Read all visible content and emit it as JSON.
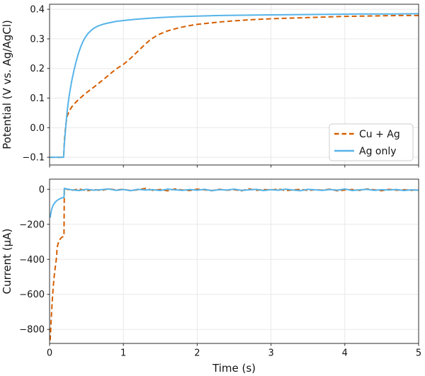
{
  "figure": {
    "background": "#ffffff"
  },
  "palette": {
    "cu_ag": "#D55E00",
    "ag_only": "#56B4E9",
    "grid": "#e8e8e8",
    "spine": "#2e2e2e",
    "text": "#141414",
    "legend_border": "#cccccc",
    "legend_bg": "#ffffff"
  },
  "chart_data": [
    {
      "type": "line",
      "title": "",
      "xlabel": "",
      "ylabel": "Potential (V vs. Ag/AgCl)",
      "xlim": [
        0,
        5
      ],
      "ylim": [
        -0.126,
        0.417
      ],
      "xticks": [
        0,
        1,
        2,
        3,
        4,
        5
      ],
      "xtick_labels": [
        "0",
        "1",
        "2",
        "3",
        "4",
        "5"
      ],
      "show_xtick_labels": false,
      "yticks": [
        -0.1,
        0.0,
        0.1,
        0.2,
        0.3,
        0.4
      ],
      "ytick_labels": [
        "−0.1",
        "0.0",
        "0.1",
        "0.2",
        "0.3",
        "0.4"
      ],
      "grid": true,
      "legend": {
        "position": "lower right",
        "entries": [
          {
            "label": "Cu + Ag",
            "series": "cu_ag",
            "line": "dashed"
          },
          {
            "label": "Ag only",
            "series": "ag_only",
            "line": "solid"
          }
        ]
      },
      "series": [
        {
          "id": "cu_ag",
          "name": "Cu + Ag",
          "style": "dashed",
          "x": [
            0,
            0.08,
            0.15,
            0.19,
            0.2,
            0.22,
            0.24,
            0.27,
            0.3,
            0.34,
            0.38,
            0.42,
            0.46,
            0.5,
            0.55,
            0.6,
            0.65,
            0.7,
            0.75,
            0.8,
            0.85,
            0.9,
            0.95,
            1.0,
            1.05,
            1.1,
            1.15,
            1.2,
            1.25,
            1.3,
            1.35,
            1.4,
            1.45,
            1.5,
            1.6,
            1.7,
            1.8,
            1.9,
            2.0,
            2.15,
            2.3,
            2.5,
            2.75,
            3.0,
            3.25,
            3.5,
            3.75,
            4.0,
            4.25,
            4.5,
            4.75,
            5.0
          ],
          "y": [
            -0.1,
            -0.1,
            -0.1,
            -0.1,
            -0.045,
            0.012,
            0.04,
            0.058,
            0.07,
            0.082,
            0.092,
            0.101,
            0.11,
            0.118,
            0.128,
            0.137,
            0.147,
            0.157,
            0.167,
            0.177,
            0.188,
            0.198,
            0.206,
            0.214,
            0.224,
            0.235,
            0.247,
            0.259,
            0.271,
            0.283,
            0.294,
            0.303,
            0.311,
            0.317,
            0.327,
            0.334,
            0.34,
            0.345,
            0.349,
            0.353,
            0.357,
            0.361,
            0.365,
            0.368,
            0.37,
            0.372,
            0.374,
            0.376,
            0.377,
            0.378,
            0.379,
            0.379
          ]
        },
        {
          "id": "ag_only",
          "name": "Ag only",
          "style": "solid",
          "x": [
            0,
            0.08,
            0.15,
            0.19,
            0.2,
            0.215,
            0.23,
            0.25,
            0.27,
            0.3,
            0.33,
            0.36,
            0.39,
            0.42,
            0.45,
            0.48,
            0.52,
            0.56,
            0.6,
            0.66,
            0.73,
            0.8,
            0.9,
            1.0,
            1.15,
            1.3,
            1.5,
            1.75,
            2.0,
            2.3,
            2.6,
            3.0,
            3.4,
            3.8,
            4.2,
            4.6,
            5.0
          ],
          "y": [
            -0.1,
            -0.1,
            -0.1,
            -0.1,
            -0.055,
            -0.01,
            0.035,
            0.08,
            0.115,
            0.158,
            0.193,
            0.224,
            0.25,
            0.272,
            0.29,
            0.304,
            0.318,
            0.328,
            0.336,
            0.344,
            0.35,
            0.354,
            0.359,
            0.362,
            0.366,
            0.369,
            0.372,
            0.375,
            0.377,
            0.379,
            0.38,
            0.381,
            0.382,
            0.383,
            0.384,
            0.384,
            0.385
          ]
        }
      ]
    },
    {
      "type": "line",
      "title": "",
      "xlabel": "Time (s)",
      "ylabel": "Current (μA)",
      "xlim": [
        0,
        5
      ],
      "ylim": [
        -880,
        58
      ],
      "xticks": [
        0,
        1,
        2,
        3,
        4,
        5
      ],
      "xtick_labels": [
        "0",
        "1",
        "2",
        "3",
        "4",
        "5"
      ],
      "show_xtick_labels": true,
      "yticks": [
        -800,
        -600,
        -400,
        -200,
        0
      ],
      "ytick_labels": [
        "−800",
        "−600",
        "−400",
        "−200",
        "0"
      ],
      "grid": true,
      "legend": null,
      "series": [
        {
          "id": "cu_ag",
          "name": "Cu + Ag",
          "style": "dashed",
          "x": [
            0.008,
            0.012,
            0.018,
            0.025,
            0.033,
            0.042,
            0.052,
            0.063,
            0.075,
            0.088,
            0.095,
            0.1,
            0.105,
            0.112,
            0.125,
            0.14,
            0.155,
            0.17,
            0.185,
            0.195,
            0.2,
            0.21,
            0.3,
            0.4,
            0.5,
            0.6,
            0.7,
            0.8,
            0.9,
            1.0,
            1.1,
            1.2,
            1.3,
            1.4,
            1.5,
            1.6,
            1.7,
            1.8,
            1.9,
            2.0,
            2.1,
            2.2,
            2.3,
            2.4,
            2.5,
            2.6,
            2.7,
            2.8,
            2.9,
            3.0,
            3.1,
            3.2,
            3.3,
            3.4,
            3.5,
            3.6,
            3.7,
            3.8,
            3.9,
            4.0,
            4.1,
            4.2,
            4.3,
            4.4,
            4.5,
            4.6,
            4.7,
            4.8,
            4.9,
            5.0
          ],
          "y": [
            -862,
            -828,
            -775,
            -718,
            -660,
            -600,
            -545,
            -495,
            -452,
            -410,
            -385,
            -345,
            -330,
            -315,
            -298,
            -286,
            -278,
            -273,
            -270,
            -268,
            8,
            3,
            -6,
            2,
            -9,
            -1,
            -7,
            3,
            -4,
            0,
            -8,
            -2,
            5,
            -6,
            -1,
            -9,
            2,
            -4,
            -7,
            1,
            -3,
            -8,
            0,
            -5,
            -2,
            -9,
            3,
            -6,
            -1,
            -4,
            2,
            -8,
            -3,
            0,
            -7,
            -2,
            -5,
            1,
            -9,
            -4,
            -1,
            -6,
            2,
            -3,
            -8,
            0,
            -5,
            -2,
            -6,
            -1
          ]
        },
        {
          "id": "ag_only",
          "name": "Ag only",
          "style": "solid",
          "x": [
            0.008,
            0.012,
            0.02,
            0.03,
            0.045,
            0.06,
            0.08,
            0.1,
            0.125,
            0.15,
            0.175,
            0.195,
            0.2,
            0.21,
            0.3,
            0.4,
            0.5,
            0.6,
            0.7,
            0.8,
            0.9,
            1.0,
            1.1,
            1.2,
            1.3,
            1.4,
            1.5,
            1.6,
            1.7,
            1.8,
            1.9,
            2.0,
            2.1,
            2.2,
            2.3,
            2.4,
            2.5,
            2.6,
            2.7,
            2.8,
            2.9,
            3.0,
            3.1,
            3.2,
            3.3,
            3.4,
            3.5,
            3.6,
            3.7,
            3.8,
            3.9,
            4.0,
            4.1,
            4.2,
            4.3,
            4.4,
            4.5,
            4.6,
            4.7,
            4.8,
            4.9,
            5.0
          ],
          "y": [
            -162,
            -150,
            -130,
            -111,
            -94,
            -83,
            -72,
            -64,
            -57,
            -52,
            -48,
            -46,
            6,
            4,
            -3,
            -7,
            0,
            -5,
            -2,
            2,
            -6,
            -1,
            -8,
            0,
            -4,
            -2,
            -7,
            1,
            -3,
            -6,
            -1,
            -5,
            0,
            -8,
            -2,
            -4,
            1,
            -6,
            -3,
            0,
            -7,
            -2,
            -5,
            1,
            -4,
            -8,
            0,
            -3,
            -6,
            -1,
            -5,
            2,
            -7,
            -3,
            0,
            -6,
            -2,
            -4,
            -1,
            -7,
            -3,
            -5
          ]
        }
      ]
    }
  ]
}
